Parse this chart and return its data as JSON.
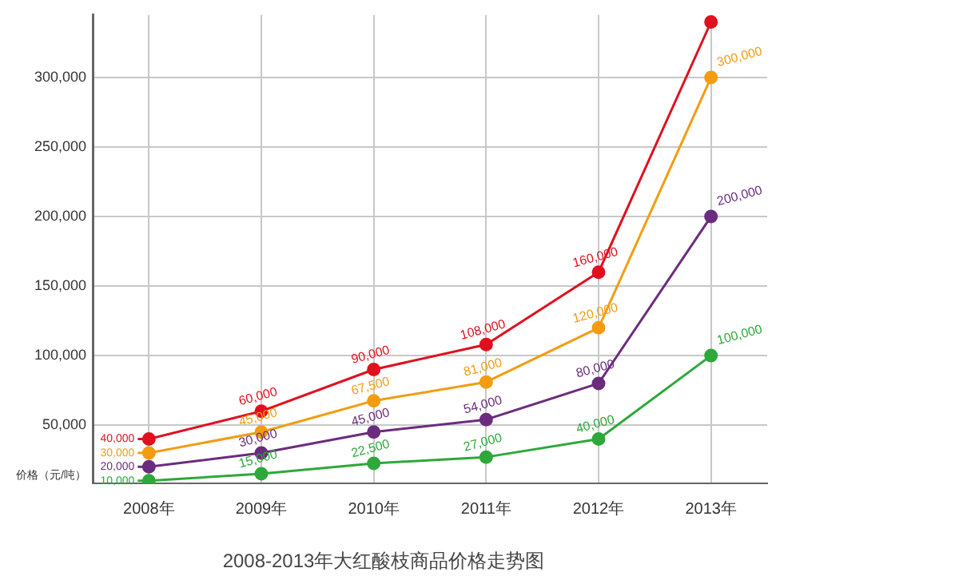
{
  "chart_data": {
    "type": "line",
    "title": "2008-2013年大红酸枝商品价格走势图",
    "ylabel": "价格（元/吨）",
    "categories": [
      "2008年",
      "2009年",
      "2010年",
      "2011年",
      "2012年",
      "2013年"
    ],
    "series": [
      {
        "color": "#e0101e",
        "values": [
          40000,
          60000,
          90000,
          108000,
          160000,
          340000
        ],
        "value_labels": [
          "40,000",
          "60,000",
          "90,000",
          "108,000",
          "160,000",
          null
        ]
      },
      {
        "color": "#f39c12",
        "values": [
          30000,
          45000,
          67500,
          81000,
          120000,
          300000
        ],
        "value_labels": [
          "30,000",
          "45,000",
          "67,500",
          "81,000",
          "120,000",
          "300,000"
        ]
      },
      {
        "color": "#6b2c7e",
        "values": [
          20000,
          30000,
          45000,
          54000,
          80000,
          200000
        ],
        "value_labels": [
          "20,000",
          "30,000",
          "45,000",
          "54,000",
          "80,000",
          "200,000"
        ]
      },
      {
        "color": "#2ea83a",
        "values": [
          10000,
          15000,
          22500,
          27000,
          40000,
          100000
        ],
        "value_labels": [
          "10,000",
          "15,000",
          "22,500",
          "27,000",
          "40,000",
          "100,000"
        ]
      }
    ],
    "ylim": [
      8000,
      345000
    ],
    "yticks": [
      {
        "value": 50000,
        "label": "50,000"
      },
      {
        "value": 100000,
        "label": "100,000"
      },
      {
        "value": 150000,
        "label": "150,000"
      },
      {
        "value": 200000,
        "label": "200,000"
      },
      {
        "value": 250000,
        "label": "250,000"
      },
      {
        "value": 300000,
        "label": "300,000"
      }
    ],
    "grid": true,
    "legend": false,
    "marker": "circle",
    "line_style": "solid"
  }
}
